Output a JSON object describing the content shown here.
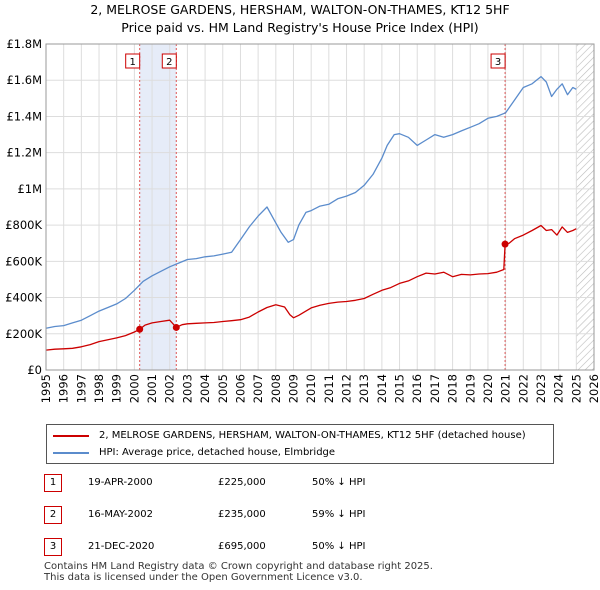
{
  "title_line1": "2, MELROSE GARDENS, HERSHAM, WALTON-ON-THAMES, KT12 5HF",
  "title_line2": "Price paid vs. HM Land Registry's House Price Index (HPI)",
  "chart_data": {
    "type": "line",
    "title": "2, MELROSE GARDENS, HERSHAM, WALTON-ON-THAMES, KT12 5HF — Price paid vs. HM Land Registry's House Price Index (HPI)",
    "xlabel": "",
    "ylabel": "",
    "xlim": [
      1995,
      2026
    ],
    "ylim": [
      0,
      1800000
    ],
    "x_ticks": [
      "1995",
      "1996",
      "1997",
      "1998",
      "1999",
      "2000",
      "2001",
      "2002",
      "2003",
      "2004",
      "2005",
      "2006",
      "2007",
      "2008",
      "2009",
      "2010",
      "2011",
      "2012",
      "2013",
      "2014",
      "2015",
      "2016",
      "2017",
      "2018",
      "2019",
      "2020",
      "2021",
      "2022",
      "2023",
      "2024",
      "2025",
      "2026"
    ],
    "y_ticks": [
      {
        "value": 0,
        "label": "£0"
      },
      {
        "value": 200000,
        "label": "£200K"
      },
      {
        "value": 400000,
        "label": "£400K"
      },
      {
        "value": 600000,
        "label": "£600K"
      },
      {
        "value": 800000,
        "label": "£800K"
      },
      {
        "value": 1000000,
        "label": "£1M"
      },
      {
        "value": 1200000,
        "label": "£1.2M"
      },
      {
        "value": 1400000,
        "label": "£1.4M"
      },
      {
        "value": 1600000,
        "label": "£1.6M"
      },
      {
        "value": 1800000,
        "label": "£1.8M"
      }
    ],
    "grid": true,
    "shaded_regions": [
      [
        2000.3,
        2002.37
      ]
    ],
    "future_hatch_from": 2025.0,
    "series": [
      {
        "name": "2, MELROSE GARDENS, HERSHAM, WALTON-ON-THAMES, KT12 5HF (detached house)",
        "color": "#cc0000",
        "x": [
          1995.0,
          1995.5,
          1996.0,
          1996.5,
          1997.0,
          1997.5,
          1998.0,
          1998.5,
          1999.0,
          1999.5,
          2000.0,
          2000.3,
          2000.6,
          2001.0,
          2001.5,
          2002.0,
          2002.37,
          2002.7,
          2003.0,
          2003.5,
          2004.0,
          2004.5,
          2005.0,
          2005.5,
          2006.0,
          2006.5,
          2007.0,
          2007.5,
          2008.0,
          2008.5,
          2008.8,
          2009.0,
          2009.3,
          2009.7,
          2010.0,
          2010.5,
          2011.0,
          2011.5,
          2012.0,
          2012.5,
          2013.0,
          2013.5,
          2014.0,
          2014.5,
          2015.0,
          2015.5,
          2016.0,
          2016.5,
          2017.0,
          2017.5,
          2018.0,
          2018.5,
          2019.0,
          2019.5,
          2020.0,
          2020.5,
          2020.9,
          2020.97,
          2021.2,
          2021.5,
          2022.0,
          2022.5,
          2023.0,
          2023.3,
          2023.6,
          2023.9,
          2024.2,
          2024.5,
          2024.8,
          2025.0
        ],
        "values": [
          110000,
          115000,
          117000,
          120000,
          128000,
          140000,
          157000,
          167000,
          177000,
          190000,
          210000,
          225000,
          248000,
          260000,
          268000,
          275000,
          235000,
          250000,
          255000,
          258000,
          260000,
          262000,
          268000,
          272000,
          278000,
          292000,
          320000,
          345000,
          360000,
          348000,
          305000,
          288000,
          302000,
          325000,
          343000,
          358000,
          368000,
          375000,
          378000,
          385000,
          395000,
          418000,
          440000,
          455000,
          478000,
          492000,
          515000,
          535000,
          530000,
          540000,
          515000,
          528000,
          525000,
          530000,
          532000,
          540000,
          555000,
          695000,
          700000,
          725000,
          745000,
          770000,
          798000,
          770000,
          775000,
          745000,
          790000,
          760000,
          770000,
          780000
        ]
      },
      {
        "name": "HPI: Average price, detached house, Elmbridge",
        "color": "#5b8ccc",
        "x": [
          1995.0,
          1995.5,
          1996.0,
          1996.5,
          1997.0,
          1997.5,
          1998.0,
          1998.5,
          1999.0,
          1999.5,
          2000.0,
          2000.5,
          2001.0,
          2001.5,
          2002.0,
          2002.5,
          2003.0,
          2003.5,
          2004.0,
          2004.5,
          2005.0,
          2005.5,
          2006.0,
          2006.5,
          2007.0,
          2007.5,
          2007.9,
          2008.3,
          2008.7,
          2009.0,
          2009.3,
          2009.7,
          2010.0,
          2010.5,
          2011.0,
          2011.5,
          2012.0,
          2012.5,
          2013.0,
          2013.5,
          2014.0,
          2014.3,
          2014.7,
          2015.0,
          2015.5,
          2016.0,
          2016.5,
          2017.0,
          2017.5,
          2018.0,
          2018.5,
          2019.0,
          2019.5,
          2020.0,
          2020.5,
          2021.0,
          2021.5,
          2022.0,
          2022.5,
          2023.0,
          2023.3,
          2023.6,
          2023.9,
          2024.2,
          2024.5,
          2024.8,
          2025.0
        ],
        "values": [
          230000,
          240000,
          245000,
          260000,
          275000,
          300000,
          325000,
          345000,
          365000,
          395000,
          440000,
          490000,
          520000,
          545000,
          570000,
          590000,
          610000,
          615000,
          625000,
          630000,
          640000,
          650000,
          720000,
          790000,
          850000,
          900000,
          830000,
          760000,
          705000,
          720000,
          800000,
          870000,
          880000,
          905000,
          915000,
          945000,
          960000,
          980000,
          1020000,
          1080000,
          1170000,
          1240000,
          1300000,
          1305000,
          1285000,
          1240000,
          1270000,
          1300000,
          1285000,
          1300000,
          1320000,
          1340000,
          1360000,
          1390000,
          1400000,
          1420000,
          1490000,
          1560000,
          1580000,
          1620000,
          1590000,
          1510000,
          1550000,
          1580000,
          1520000,
          1560000,
          1550000
        ]
      }
    ],
    "sales": [
      {
        "id": "1",
        "x": 2000.3,
        "value": 225000,
        "date": "19-APR-2000",
        "price": "£225,000",
        "hpi_note": "50% ↓ HPI"
      },
      {
        "id": "2",
        "x": 2002.37,
        "value": 235000,
        "date": "16-MAY-2002",
        "price": "£235,000",
        "hpi_note": "59% ↓ HPI"
      },
      {
        "id": "3",
        "x": 2020.97,
        "value": 695000,
        "date": "21-DEC-2020",
        "price": "£695,000",
        "hpi_note": "50% ↓ HPI"
      }
    ]
  },
  "legend": {
    "property_label": "2, MELROSE GARDENS, HERSHAM, WALTON-ON-THAMES, KT12 5HF (detached house)",
    "hpi_label": "HPI: Average price, detached house, Elmbridge"
  },
  "footer": {
    "line1": "Contains HM Land Registry data © Crown copyright and database right 2025.",
    "line2": "This data is licensed under the Open Government Licence v3.0."
  }
}
